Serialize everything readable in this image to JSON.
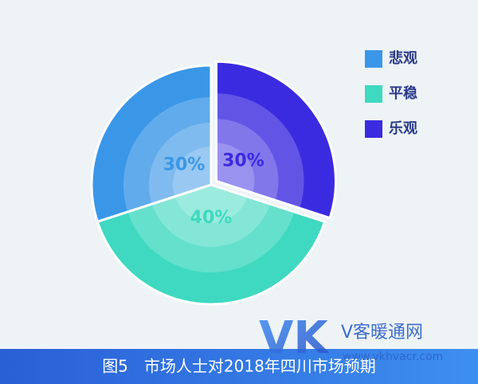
{
  "chart_data": {
    "type": "pie",
    "title": "图5　市场人士对2018年四川市场预期",
    "categories": [
      "悲观",
      "平稳",
      "乐观"
    ],
    "values": [
      30,
      40,
      30
    ],
    "value_labels": [
      "30%",
      "40%",
      "30%"
    ],
    "colors": [
      "#3a97e8",
      "#3ed9c0",
      "#3b2be0"
    ],
    "explode": [
      false,
      false,
      true
    ],
    "legend": "upper right"
  },
  "watermark": {
    "logo": "VK",
    "name": "V客暖通网",
    "url": "www.vkhvacr.com"
  }
}
